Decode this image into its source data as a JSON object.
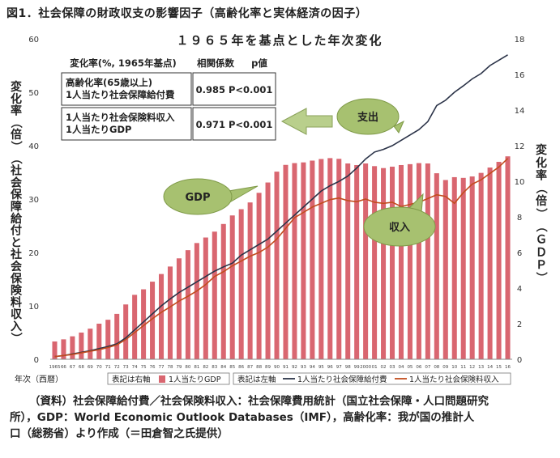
{
  "figure_title": "図1．社会保障の財政収支の影響因子（高齢化率と実体経済の因子）",
  "chart_data": {
    "type": "bar+line",
    "title": "１９６５年を基点とした年次変化",
    "xlabel": "年次（西暦）",
    "ylabel_left": "変化率（倍）（社会保障給付と社会保険料収入）",
    "ylabel_right": "変化率（倍）（ＧＤＰ）",
    "ylim_left": [
      0,
      60
    ],
    "ylim_right": [
      0,
      18
    ],
    "yticks_left": [
      "0",
      "10",
      "20",
      "30",
      "40",
      "50",
      "60"
    ],
    "yticks_right": [
      "0",
      "2",
      "4",
      "6",
      "8",
      "10",
      "12",
      "14",
      "16",
      "18"
    ],
    "x_tick_labels": [
      "1965",
      "66",
      "67",
      "68",
      "69",
      "70",
      "71",
      "72",
      "73",
      "74",
      "75",
      "76",
      "77",
      "78",
      "79",
      "80",
      "81",
      "82",
      "83",
      "84",
      "85",
      "86",
      "87",
      "88",
      "89",
      "90",
      "91",
      "92",
      "93",
      "94",
      "95",
      "96",
      "97",
      "98",
      "99",
      "2000",
      "01",
      "02",
      "03",
      "04",
      "05",
      "06",
      "07",
      "08",
      "09",
      "10",
      "11",
      "12",
      "13",
      "14",
      "15",
      "16"
    ],
    "grid": false,
    "bar_series": {
      "name": "1人当たりGDP",
      "axis": "right",
      "color": "#d96670",
      "values": [
        1.0,
        1.12,
        1.29,
        1.5,
        1.72,
        2.0,
        2.22,
        2.55,
        3.08,
        3.62,
        3.93,
        4.36,
        4.79,
        5.21,
        5.67,
        6.13,
        6.53,
        6.84,
        7.17,
        7.6,
        8.08,
        8.43,
        8.81,
        9.35,
        9.93,
        10.54,
        10.92,
        11.02,
        11.06,
        11.16,
        11.25,
        11.3,
        11.26,
        11.0,
        10.91,
        11.0,
        10.85,
        10.74,
        10.82,
        10.91,
        10.96,
        11.02,
        11.0,
        10.45,
        10.07,
        10.23,
        10.19,
        10.27,
        10.47,
        10.77,
        11.09,
        11.4
      ]
    },
    "line_series": [
      {
        "name": "1人当たり社会保障給付費",
        "axis": "left",
        "color": "#2b3348",
        "values": [
          0.5,
          0.7,
          1.0,
          1.3,
          1.6,
          2.0,
          2.4,
          2.9,
          4.0,
          5.5,
          7.0,
          8.5,
          10.0,
          11.3,
          12.5,
          13.5,
          14.5,
          15.5,
          16.5,
          17.3,
          18.0,
          19.5,
          20.5,
          21.5,
          22.5,
          24.0,
          25.5,
          27.0,
          28.5,
          30.0,
          31.5,
          32.5,
          33.3,
          34.3,
          35.8,
          37.5,
          38.8,
          39.3,
          40.0,
          41.0,
          42.0,
          43.0,
          44.5,
          47.5,
          48.5,
          50.0,
          51.2,
          52.5,
          53.5,
          55.0,
          56.0,
          57.0
        ]
      },
      {
        "name": "1人当たり社会保険料収入",
        "axis": "left",
        "color": "#c24c1e",
        "values": [
          0.5,
          0.7,
          0.9,
          1.2,
          1.5,
          1.8,
          2.2,
          2.7,
          3.7,
          5.0,
          6.3,
          7.6,
          8.8,
          9.8,
          10.9,
          11.8,
          12.8,
          14.0,
          15.5,
          16.4,
          17.5,
          18.4,
          19.3,
          20.0,
          21.0,
          22.5,
          24.5,
          26.5,
          27.5,
          28.5,
          29.2,
          29.9,
          30.2,
          29.7,
          29.5,
          30.0,
          29.4,
          29.2,
          29.4,
          28.6,
          29.0,
          29.4,
          30.1,
          30.8,
          30.5,
          29.2,
          31.2,
          32.8,
          33.6,
          34.8,
          36.0,
          37.6
        ]
      }
    ],
    "legend": [
      {
        "note": "表記は右軸",
        "label": "1人当たりGDP",
        "kind": "bar",
        "color": "#d96670"
      },
      {
        "note": "表記は左軸",
        "label": "1人当たり社会保障給付費",
        "kind": "line",
        "color": "#2b3348"
      },
      {
        "label": "1人当たり社会保険料収入",
        "kind": "line",
        "color": "#c24c1e"
      }
    ],
    "legend_position": "bottom",
    "table": {
      "headers": [
        "変化率(%, 1965年基点)",
        "相関係数",
        "p値"
      ],
      "rows": [
        {
          "label_lines": [
            "高齢化率(65歳以上)",
            "1人当たり社会保障給付費"
          ],
          "value": "0.985 P<0.001"
        },
        {
          "label_lines": [
            "1人当たり社会保険料収入",
            "1人当たりGDP"
          ],
          "value": "0.971 P<0.001"
        }
      ]
    },
    "annotations": [
      {
        "label": "支出"
      },
      {
        "label": "GDP"
      },
      {
        "label": "収入"
      }
    ]
  },
  "source_lines": [
    "（資料）社会保障給付費／社会保険料収入：社会保障費用統計（国立社会保障・人口問題研究",
    "所），GDP：World Economic Outlook Databases（IMF），高齢化率：我が国の推計人",
    "口（総務省）より作成（＝田倉智之氏提供）"
  ]
}
